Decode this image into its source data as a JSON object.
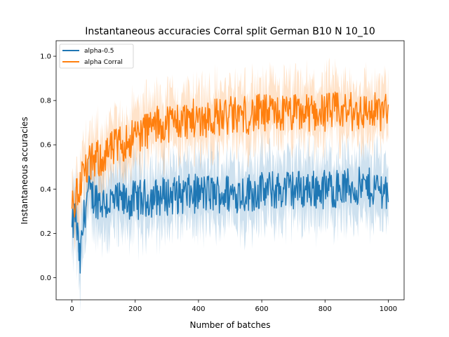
{
  "chart_data": {
    "type": "line",
    "title": "Instantaneous accuracies Corral split German B10 N 10_10",
    "xlabel": "Number of batches",
    "ylabel": "Instantaneous accuracies",
    "xlim": [
      -50,
      1050
    ],
    "ylim": [
      -0.1,
      1.07
    ],
    "xticks": [
      0,
      200,
      400,
      600,
      800,
      1000
    ],
    "yticks": [
      0.0,
      0.2,
      0.4,
      0.6,
      0.8,
      1.0
    ],
    "ytick_labels": [
      "0.0",
      "0.2",
      "0.4",
      "0.6",
      "0.8",
      "1.0"
    ],
    "legend": {
      "position": "top-left"
    },
    "series": [
      {
        "name": "alpha-0.5",
        "color": "#1f77b4",
        "x": [
          0,
          10,
          20,
          25,
          30,
          40,
          50,
          75,
          100,
          150,
          200,
          300,
          400,
          500,
          600,
          700,
          800,
          900,
          1000
        ],
        "mean": [
          0.2,
          0.3,
          0.15,
          0.05,
          0.15,
          0.3,
          0.38,
          0.36,
          0.34,
          0.34,
          0.35,
          0.37,
          0.38,
          0.38,
          0.39,
          0.4,
          0.4,
          0.41,
          0.4
        ],
        "spread": 0.09,
        "band": 0.16
      },
      {
        "name": "alpha Corral",
        "color": "#ff7f0e",
        "x": [
          0,
          10,
          20,
          30,
          40,
          50,
          75,
          100,
          150,
          200,
          250,
          300,
          400,
          500,
          600,
          700,
          800,
          900,
          1000
        ],
        "mean": [
          0.3,
          0.35,
          0.4,
          0.45,
          0.48,
          0.5,
          0.53,
          0.55,
          0.6,
          0.64,
          0.68,
          0.7,
          0.72,
          0.73,
          0.74,
          0.74,
          0.75,
          0.75,
          0.75
        ],
        "spread": 0.09,
        "band": 0.14
      }
    ]
  }
}
